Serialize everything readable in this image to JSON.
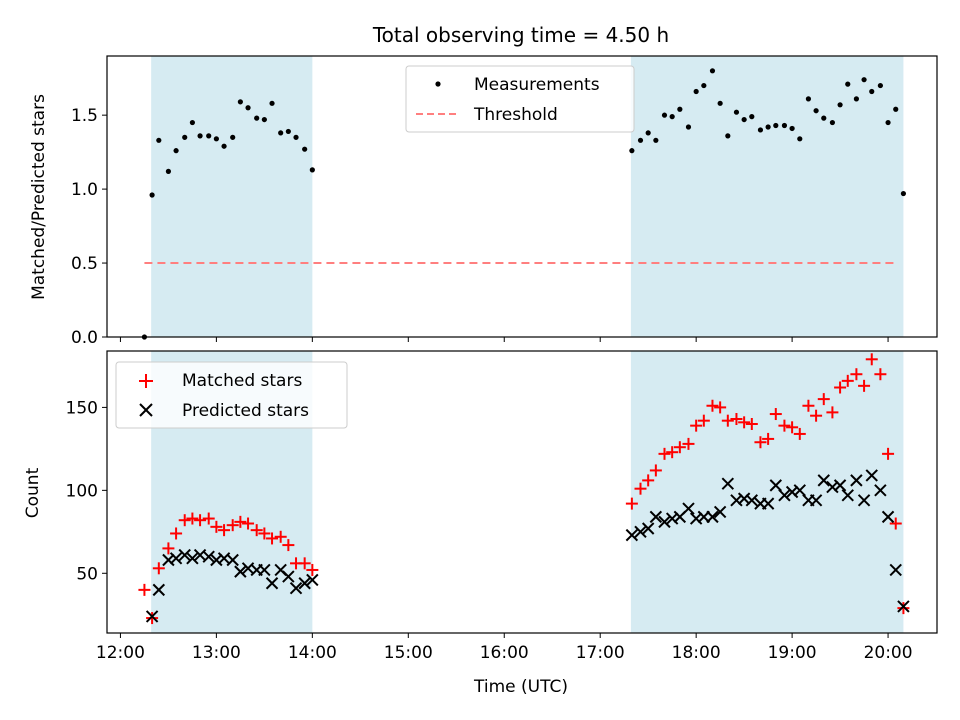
{
  "chart_data": {
    "title": "Total observing time = 4.50 h",
    "xlabel": "Time (UTC)",
    "x_tick_labels": [
      "12:00",
      "13:00",
      "14:00",
      "15:00",
      "16:00",
      "17:00",
      "18:00",
      "19:00",
      "20:00"
    ],
    "x_tick_values": [
      12,
      13,
      14,
      15,
      16,
      17,
      18,
      19,
      20
    ],
    "xlim": [
      11.86,
      20.51
    ],
    "observing_windows": [
      [
        12.32,
        14.0
      ],
      [
        17.32,
        20.16
      ]
    ],
    "colors": {
      "window_fill": "#add8e6",
      "matched": "#ff0000",
      "predicted": "#000000",
      "ratio": "#000000",
      "threshold": "#ff7f7f"
    },
    "panels": [
      {
        "id": "ratio",
        "type": "scatter",
        "ylabel": "Matched/Predicted stars",
        "ylim": [
          0,
          1.9
        ],
        "y_ticks": [
          0,
          0.5,
          1.0,
          1.5
        ],
        "y_tick_labels": [
          "0.0",
          "0.5",
          "1.0",
          "1.5"
        ],
        "legend": {
          "placement": "top-center",
          "entries": [
            {
              "label": "Measurements",
              "marker": "dot"
            },
            {
              "label": "Threshold",
              "marker": "dashed-line"
            }
          ]
        },
        "threshold": {
          "y": 0.5,
          "x_range": [
            12.25,
            20.1
          ]
        },
        "series": [
          {
            "name": "Measurements",
            "marker": "dot",
            "x": [
              12.25,
              12.33,
              12.4,
              12.5,
              12.58,
              12.67,
              12.75,
              12.83,
              12.92,
              13.0,
              13.08,
              13.17,
              13.25,
              13.33,
              13.42,
              13.5,
              13.58,
              13.67,
              13.75,
              13.83,
              13.92,
              14.0,
              17.33,
              17.42,
              17.5,
              17.58,
              17.67,
              17.75,
              17.83,
              17.92,
              18.0,
              18.08,
              18.17,
              18.25,
              18.33,
              18.42,
              18.5,
              18.58,
              18.67,
              18.75,
              18.83,
              18.92,
              19.0,
              19.08,
              19.17,
              19.25,
              19.33,
              19.42,
              19.5,
              19.58,
              19.67,
              19.75,
              19.83,
              19.92,
              20.0,
              20.08,
              20.16
            ],
            "y": [
              0.0,
              0.96,
              1.33,
              1.12,
              1.26,
              1.35,
              1.45,
              1.36,
              1.36,
              1.34,
              1.29,
              1.35,
              1.59,
              1.55,
              1.48,
              1.47,
              1.58,
              1.38,
              1.39,
              1.35,
              1.27,
              1.13,
              1.26,
              1.33,
              1.38,
              1.33,
              1.5,
              1.49,
              1.54,
              1.42,
              1.66,
              1.7,
              1.8,
              1.58,
              1.36,
              1.52,
              1.47,
              1.49,
              1.4,
              1.42,
              1.43,
              1.43,
              1.41,
              1.34,
              1.61,
              1.53,
              1.48,
              1.45,
              1.57,
              1.71,
              1.61,
              1.74,
              1.66,
              1.7,
              1.45,
              1.54,
              0.97
            ]
          }
        ]
      },
      {
        "id": "counts",
        "type": "scatter",
        "ylabel": "Count",
        "ylim": [
          14,
          184
        ],
        "y_ticks": [
          50,
          100,
          150
        ],
        "y_tick_labels": [
          "50",
          "100",
          "150"
        ],
        "legend": {
          "placement": "top-left",
          "entries": [
            {
              "label": "Matched stars",
              "marker": "plus"
            },
            {
              "label": "Predicted stars",
              "marker": "x"
            }
          ]
        },
        "series": [
          {
            "name": "Matched stars",
            "marker": "plus",
            "x": [
              12.25,
              12.33,
              12.4,
              12.5,
              12.58,
              12.67,
              12.75,
              12.83,
              12.92,
              13.0,
              13.08,
              13.17,
              13.25,
              13.33,
              13.42,
              13.5,
              13.58,
              13.67,
              13.75,
              13.83,
              13.92,
              14.0,
              17.33,
              17.42,
              17.5,
              17.58,
              17.67,
              17.75,
              17.83,
              17.92,
              18.0,
              18.08,
              18.17,
              18.25,
              18.33,
              18.42,
              18.5,
              18.58,
              18.67,
              18.75,
              18.83,
              18.92,
              19.0,
              19.08,
              19.17,
              19.25,
              19.33,
              19.42,
              19.5,
              19.58,
              19.67,
              19.75,
              19.83,
              19.92,
              20.0,
              20.08,
              20.16
            ],
            "y": [
              40,
              23,
              53,
              65,
              74,
              82,
              83,
              82,
              83,
              78,
              76,
              79,
              81,
              80,
              76,
              74,
              71,
              72,
              67,
              56,
              56,
              52,
              92,
              101,
              106,
              112,
              122,
              123,
              126,
              128,
              139,
              142,
              151,
              150,
              142,
              143,
              141,
              140,
              129,
              131,
              146,
              139,
              138,
              134,
              151,
              145,
              155,
              147,
              162,
              166,
              170,
              163,
              179,
              170,
              122,
              80,
              29
            ]
          },
          {
            "name": "Predicted stars",
            "marker": "x",
            "x": [
              12.25,
              12.33,
              12.4,
              12.5,
              12.58,
              12.67,
              12.75,
              12.83,
              12.92,
              13.0,
              13.08,
              13.17,
              13.25,
              13.33,
              13.42,
              13.5,
              13.58,
              13.67,
              13.75,
              13.83,
              13.92,
              14.0,
              17.33,
              17.42,
              17.5,
              17.58,
              17.67,
              17.75,
              17.83,
              17.92,
              18.0,
              18.08,
              18.17,
              18.25,
              18.33,
              18.42,
              18.5,
              18.58,
              18.67,
              18.75,
              18.83,
              18.92,
              19.0,
              19.08,
              19.17,
              19.25,
              19.33,
              19.42,
              19.5,
              19.58,
              19.67,
              19.75,
              19.83,
              19.92,
              20.0,
              20.08,
              20.16
            ],
            "y": [
              null,
              24,
              40,
              58,
              59,
              61,
              59,
              61,
              60,
              58,
              59,
              58,
              51,
              53,
              52,
              52,
              44,
              52,
              48,
              41,
              44,
              46,
              73,
              75,
              77,
              84,
              81,
              83,
              84,
              89,
              83,
              84,
              84,
              87,
              104,
              94,
              95,
              94,
              92,
              92,
              103,
              97,
              99,
              100,
              94,
              94,
              106,
              102,
              103,
              97,
              106,
              94,
              109,
              100,
              84,
              52,
              30
            ]
          }
        ]
      }
    ]
  }
}
